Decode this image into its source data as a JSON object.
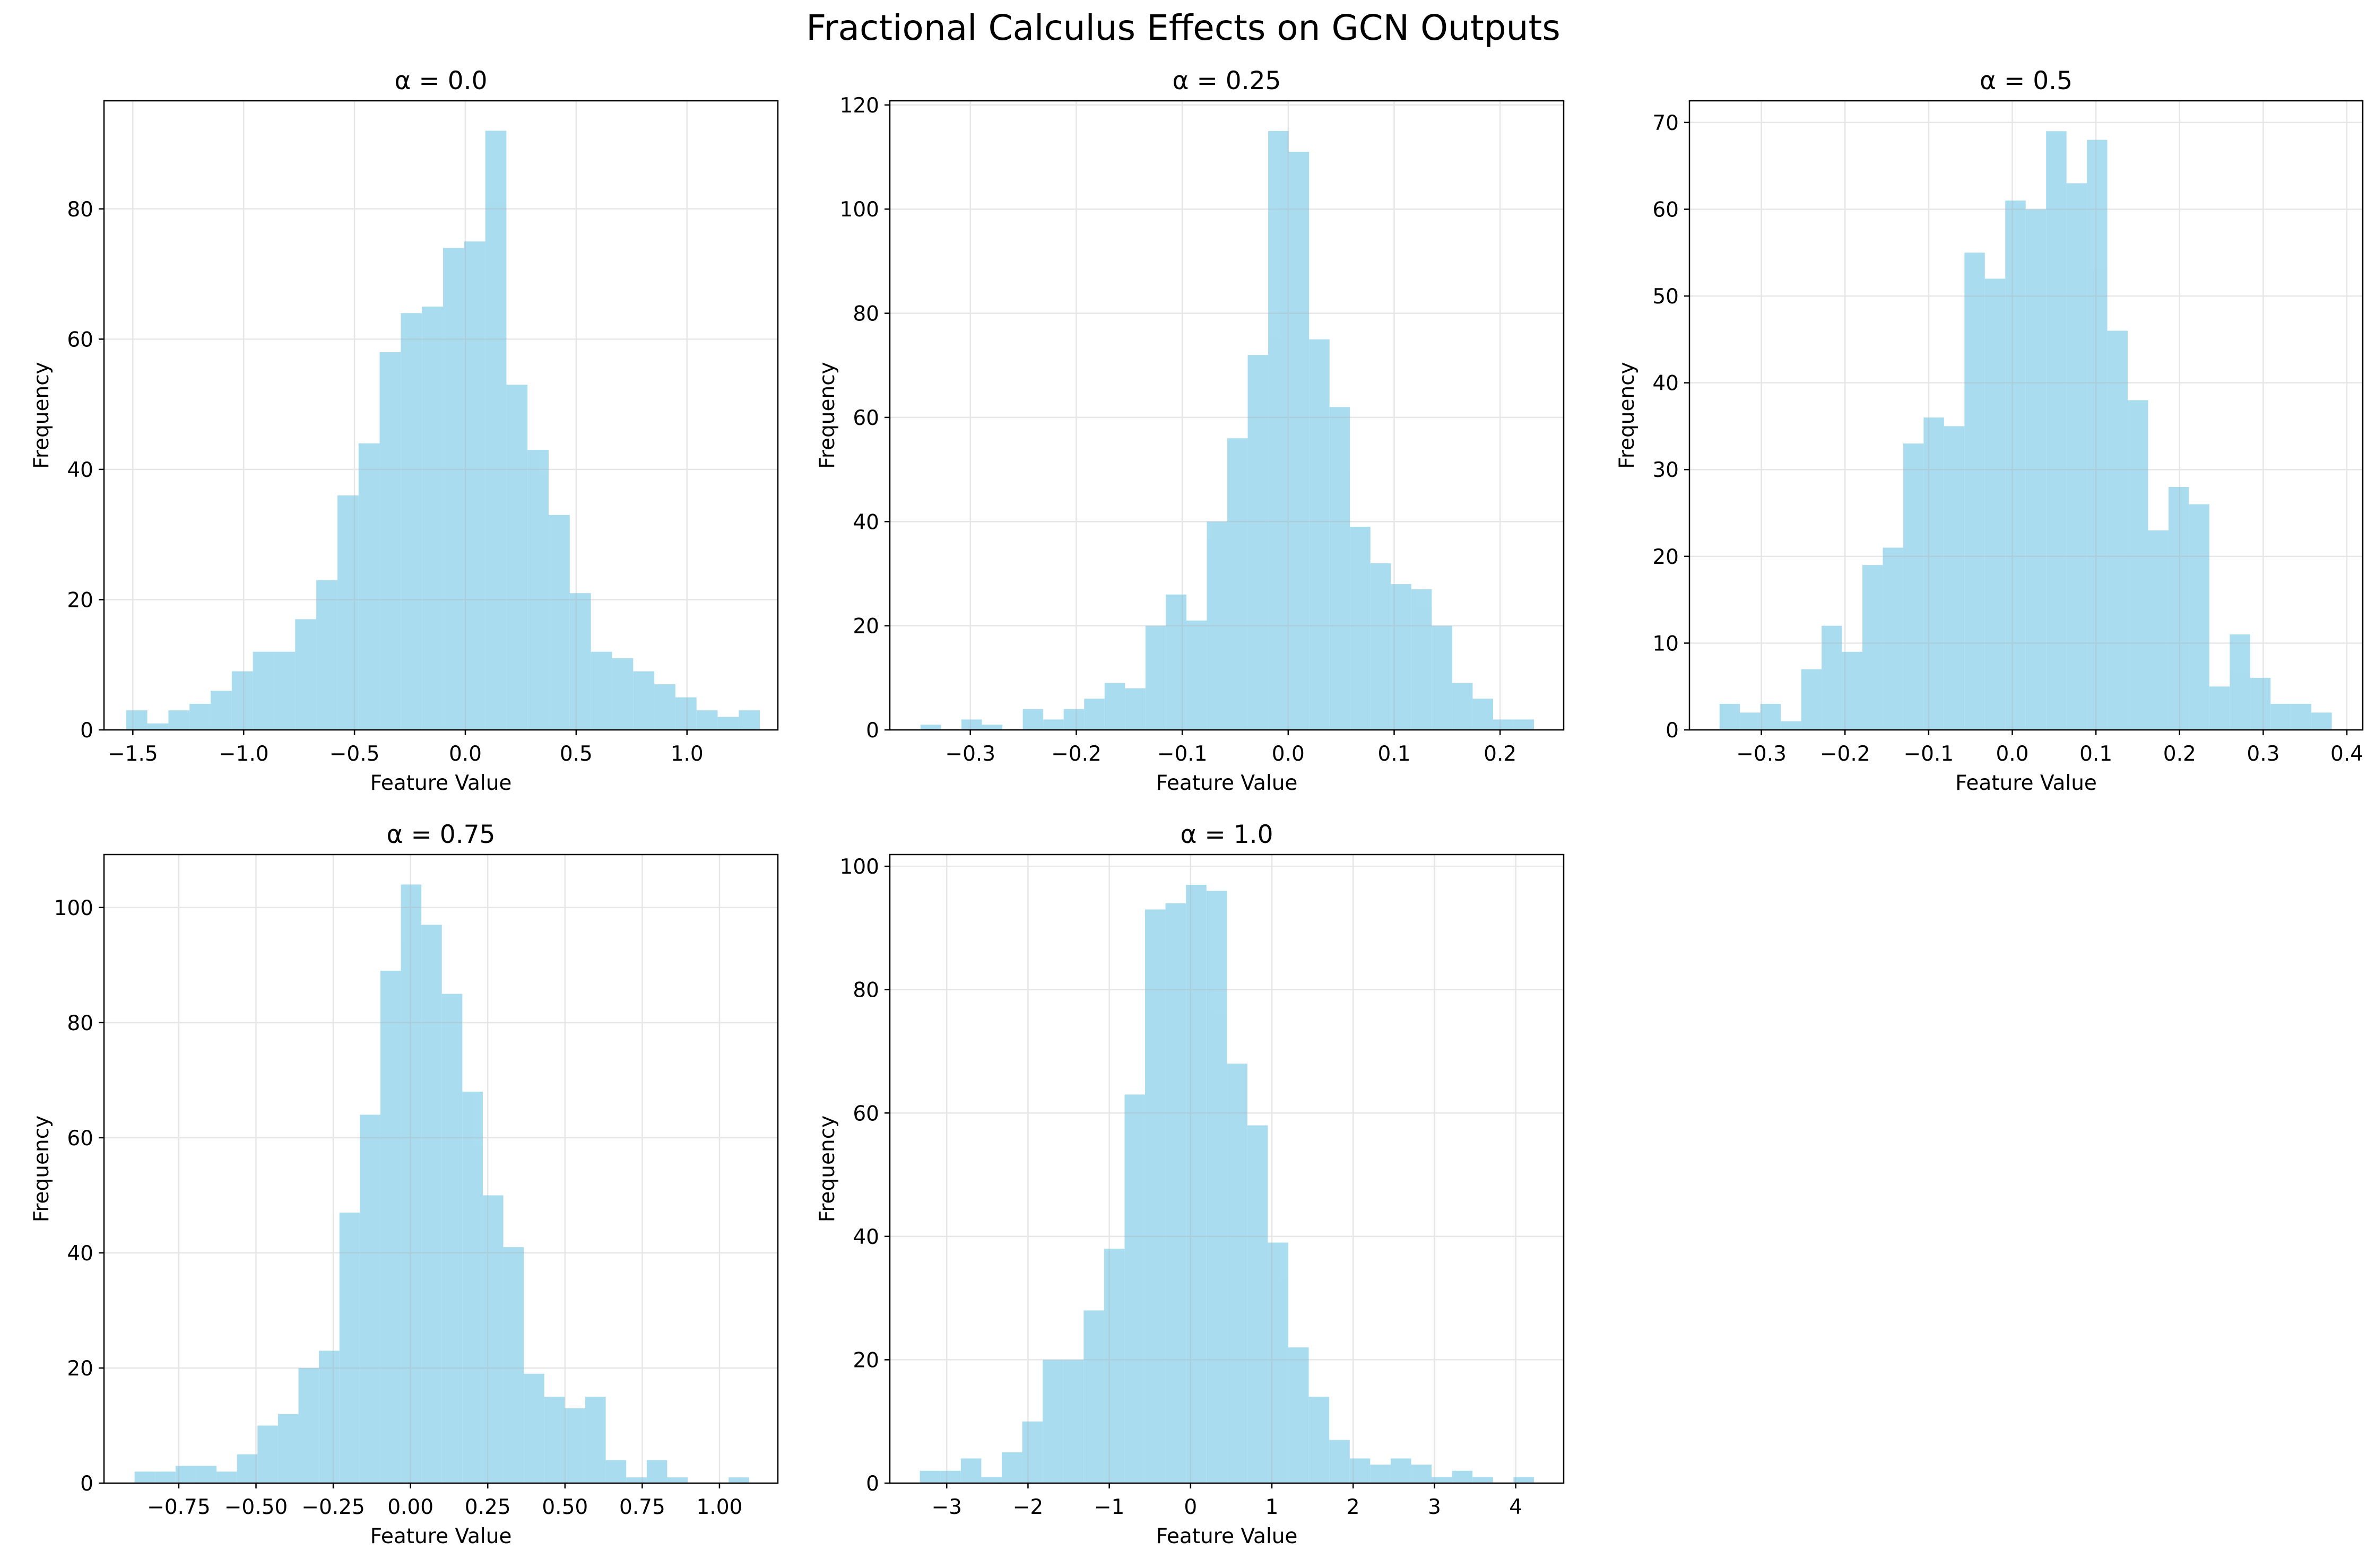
{
  "figure": {
    "title": "Fractional Calculus Effects on GCN Outputs",
    "bar_color": "#87CEEB",
    "grid_color": "#b0b0b0"
  },
  "chart_data": [
    {
      "type": "bar",
      "title": "α = 0.0",
      "xlabel": "Feature Value",
      "ylabel": "Frequency",
      "bin_start": -1.53,
      "bin_width": 0.0953,
      "values": [
        3,
        1,
        3,
        4,
        6,
        9,
        12,
        12,
        17,
        23,
        36,
        44,
        58,
        64,
        65,
        74,
        75,
        92,
        53,
        43,
        33,
        21,
        12,
        11,
        9,
        7,
        5,
        3,
        2,
        3
      ],
      "xlim": [
        -1.63,
        1.41
      ],
      "ylim": [
        0,
        96.6
      ],
      "xticks": [
        -1.5,
        -1.0,
        -0.5,
        0.0,
        0.5,
        1.0
      ],
      "xtick_labels": [
        "−1.5",
        "−1.0",
        "−0.5",
        "0.0",
        "0.5",
        "1.0"
      ],
      "yticks": [
        0,
        20,
        40,
        60,
        80
      ],
      "grid": true
    },
    {
      "type": "bar",
      "title": "α = 0.25",
      "xlabel": "Feature Value",
      "ylabel": "Frequency",
      "bin_start": -0.347,
      "bin_width": 0.0193,
      "values": [
        1,
        0,
        2,
        1,
        0,
        4,
        2,
        4,
        6,
        9,
        8,
        20,
        26,
        21,
        40,
        56,
        72,
        115,
        111,
        75,
        62,
        39,
        32,
        28,
        27,
        20,
        9,
        6,
        2,
        2
      ],
      "xlim": [
        -0.376,
        0.26
      ],
      "ylim": [
        0,
        120.8
      ],
      "xticks": [
        -0.3,
        -0.2,
        -0.1,
        0.0,
        0.1,
        0.2
      ],
      "xtick_labels": [
        "−0.3",
        "−0.2",
        "−0.1",
        "0.0",
        "0.1",
        "0.2"
      ],
      "yticks": [
        0,
        20,
        40,
        60,
        80,
        100,
        120
      ],
      "grid": true
    },
    {
      "type": "bar",
      "title": "α = 0.5",
      "xlabel": "Feature Value",
      "ylabel": "Frequency",
      "bin_start": -0.35,
      "bin_width": 0.0244,
      "values": [
        3,
        2,
        3,
        1,
        7,
        12,
        9,
        19,
        21,
        33,
        36,
        35,
        55,
        52,
        61,
        60,
        69,
        63,
        68,
        46,
        38,
        23,
        28,
        26,
        5,
        11,
        6,
        3,
        3,
        2
      ],
      "xlim": [
        -0.386,
        0.419
      ],
      "ylim": [
        0,
        72.5
      ],
      "xticks": [
        -0.3,
        -0.2,
        -0.1,
        0.0,
        0.1,
        0.2,
        0.3,
        0.4
      ],
      "xtick_labels": [
        "−0.3",
        "−0.2",
        "−0.1",
        "0.0",
        "0.1",
        "0.2",
        "0.3",
        "0.4"
      ],
      "yticks": [
        0,
        10,
        20,
        30,
        40,
        50,
        60,
        70
      ],
      "grid": true
    },
    {
      "type": "bar",
      "title": "α = 0.75",
      "xlabel": "Feature Value",
      "ylabel": "Frequency",
      "bin_start": -0.893,
      "bin_width": 0.0663,
      "values": [
        2,
        2,
        3,
        3,
        2,
        5,
        10,
        12,
        20,
        23,
        47,
        64,
        89,
        104,
        97,
        85,
        68,
        50,
        41,
        19,
        15,
        13,
        15,
        4,
        1,
        4,
        1,
        0,
        0,
        1
      ],
      "xlim": [
        -0.992,
        1.189
      ],
      "ylim": [
        0,
        109.2
      ],
      "xticks": [
        -0.75,
        -0.5,
        -0.25,
        0.0,
        0.25,
        0.5,
        0.75,
        1.0
      ],
      "xtick_labels": [
        "−0.75",
        "−0.50",
        "−0.25",
        "0.00",
        "0.25",
        "0.50",
        "0.75",
        "1.00"
      ],
      "yticks": [
        0,
        20,
        40,
        60,
        80,
        100
      ],
      "grid": true
    },
    {
      "type": "bar",
      "title": "α = 1.0",
      "xlabel": "Feature Value",
      "ylabel": "Frequency",
      "bin_start": -3.33,
      "bin_width": 0.2518,
      "values": [
        2,
        2,
        4,
        1,
        5,
        10,
        20,
        20,
        28,
        38,
        63,
        93,
        94,
        97,
        96,
        68,
        58,
        39,
        22,
        14,
        7,
        4,
        3,
        4,
        3,
        1,
        2,
        1,
        0,
        1
      ],
      "xlim": [
        -3.7,
        4.59
      ],
      "ylim": [
        0,
        101.9
      ],
      "xticks": [
        -3,
        -2,
        -1,
        0,
        1,
        2,
        3,
        4
      ],
      "xtick_labels": [
        "−3",
        "−2",
        "−1",
        "0",
        "1",
        "2",
        "3",
        "4"
      ],
      "yticks": [
        0,
        20,
        40,
        60,
        80,
        100
      ],
      "grid": true
    }
  ]
}
